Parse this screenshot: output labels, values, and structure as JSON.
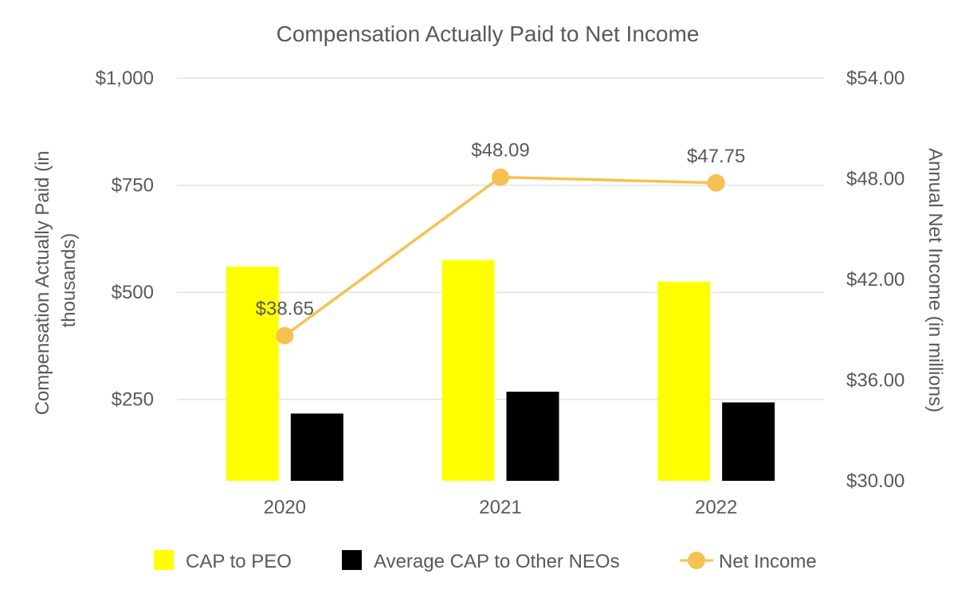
{
  "chart_data": {
    "type": "bar",
    "title": "Compensation Actually Paid to Net Income",
    "categories": [
      "2020",
      "2021",
      "2022"
    ],
    "y_left": {
      "label_lines": [
        "Compensation Actually Paid (in",
        "thousands)"
      ],
      "ticks": [
        250,
        500,
        750,
        1000
      ],
      "tick_labels": [
        "$250",
        "$500",
        "$750",
        "$1,000"
      ],
      "range": [
        60,
        1000
      ]
    },
    "y_right": {
      "label": "Annual Net Income (in millions)",
      "ticks": [
        30,
        36,
        42,
        48,
        54
      ],
      "tick_labels": [
        "$30.00",
        "$36.00",
        "$42.00",
        "$48.00",
        "$54.00"
      ],
      "range": [
        30,
        54
      ]
    },
    "series": [
      {
        "name": "CAP to PEO",
        "kind": "bar",
        "axis": "left",
        "color": "#FFFF00",
        "values": [
          560,
          575,
          525
        ]
      },
      {
        "name": "Average CAP to Other NEOs",
        "kind": "bar",
        "axis": "left",
        "color": "#000000",
        "values": [
          217,
          268,
          243
        ]
      },
      {
        "name": "Net Income",
        "kind": "line",
        "axis": "right",
        "color": "#F5C152",
        "values": [
          38.65,
          48.09,
          47.75
        ],
        "labels": [
          "$38.65",
          "$48.09",
          "$47.75"
        ]
      }
    ],
    "legend_position": "bottom",
    "grid": true
  }
}
